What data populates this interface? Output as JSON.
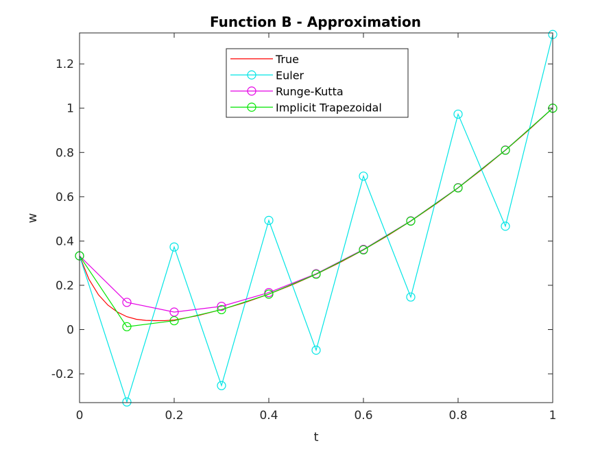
{
  "chart_data": {
    "type": "line",
    "title": "Function B - Approximation",
    "xlabel": "t",
    "ylabel": "w",
    "xlim": [
      0,
      1
    ],
    "ylim": [
      -0.33,
      1.34
    ],
    "xticks": [
      0,
      0.2,
      0.4,
      0.6,
      0.8,
      1
    ],
    "xtick_labels": [
      "0",
      "0.2",
      "0.4",
      "0.6",
      "0.8",
      "1"
    ],
    "yticks": [
      -0.2,
      0,
      0.2,
      0.4,
      0.6,
      0.8,
      1,
      1.2
    ],
    "ytick_labels": [
      "-0.2",
      "0",
      "0.2",
      "0.4",
      "0.6",
      "0.8",
      "1",
      "1.2"
    ],
    "grid": false,
    "legend_position": "top-center",
    "series": [
      {
        "name": "True",
        "color": "#ff0000",
        "marker": "none",
        "x": [
          0,
          0.02,
          0.04,
          0.06,
          0.08,
          0.1,
          0.12,
          0.14,
          0.16,
          0.18,
          0.2,
          0.25,
          0.3,
          0.35,
          0.4,
          0.45,
          0.5,
          0.55,
          0.6,
          0.65,
          0.7,
          0.75,
          0.8,
          0.85,
          0.9,
          0.95,
          1
        ],
        "y": [
          0.333,
          0.2266,
          0.1571,
          0.1104,
          0.0791,
          0.0581,
          0.0465,
          0.0415,
          0.0403,
          0.0405,
          0.0431,
          0.063,
          0.0903,
          0.1225,
          0.1601,
          0.2025,
          0.25,
          0.3025,
          0.36,
          0.4225,
          0.49,
          0.5625,
          0.64,
          0.7225,
          0.81,
          0.9025,
          1.0
        ]
      },
      {
        "name": "Euler",
        "color": "#00e5e5",
        "marker": "circle",
        "x": [
          0,
          0.1,
          0.2,
          0.3,
          0.4,
          0.5,
          0.6,
          0.7,
          0.8,
          0.9,
          1
        ],
        "y": [
          0.333,
          -0.327,
          0.373,
          -0.253,
          0.493,
          -0.093,
          0.693,
          0.147,
          0.973,
          0.467,
          1.333
        ]
      },
      {
        "name": "Runge-Kutta",
        "color": "#e500e5",
        "marker": "circle",
        "x": [
          0,
          0.1,
          0.2,
          0.3,
          0.4,
          0.5,
          0.6,
          0.7,
          0.8,
          0.9,
          1
        ],
        "y": [
          0.333,
          0.123,
          0.079,
          0.105,
          0.167,
          0.252,
          0.362,
          0.491,
          0.641,
          0.811,
          1.0
        ]
      },
      {
        "name": "Implicit Trapezoidal",
        "color": "#00e500",
        "marker": "circle",
        "x": [
          0,
          0.1,
          0.2,
          0.3,
          0.4,
          0.5,
          0.6,
          0.7,
          0.8,
          0.9,
          1
        ],
        "y": [
          0.333,
          0.013,
          0.04,
          0.09,
          0.16,
          0.25,
          0.36,
          0.49,
          0.64,
          0.81,
          1.0
        ]
      }
    ]
  }
}
